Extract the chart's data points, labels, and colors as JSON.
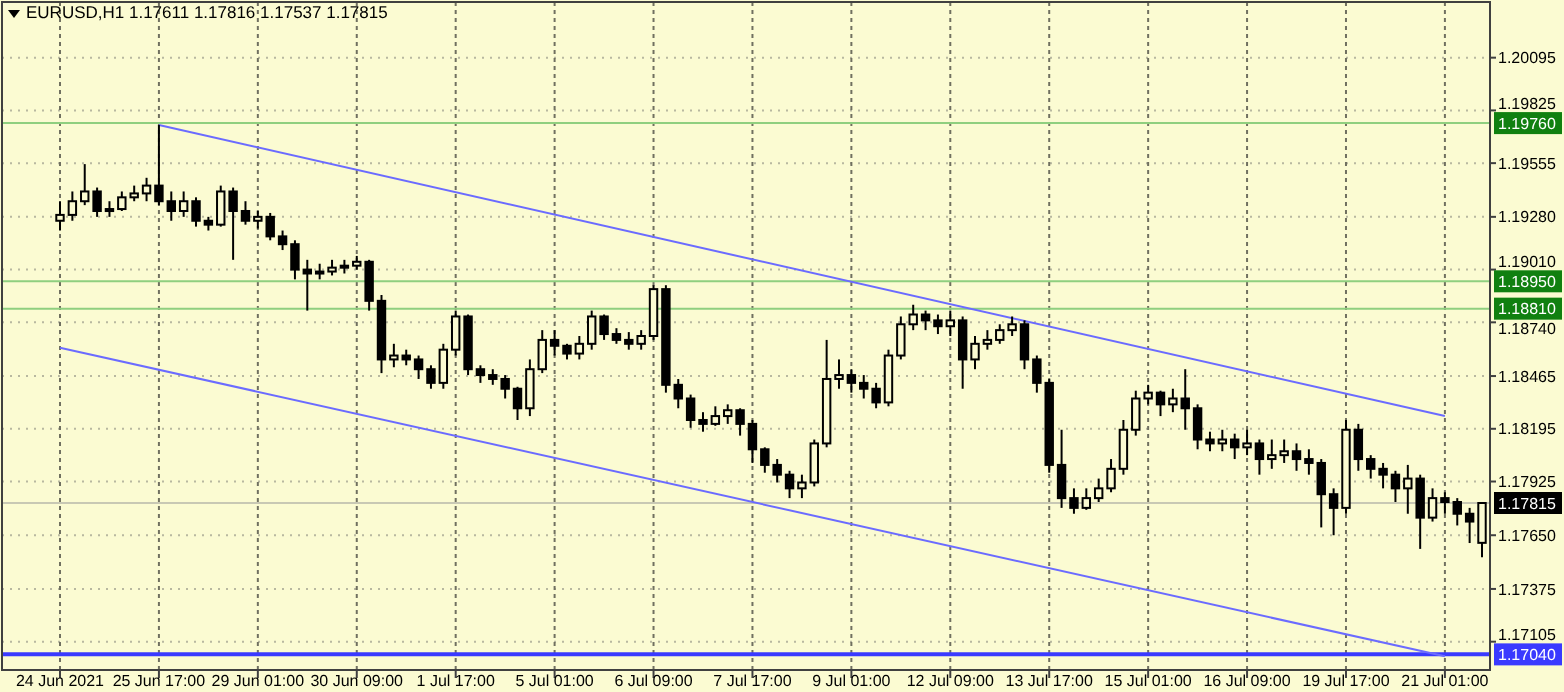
{
  "chart_data": {
    "type": "candlestick",
    "title": "EURUSD,H1  1.17611 1.17816 1.17537 1.17815",
    "categories": [
      "24 Jun 2021",
      null,
      null,
      null,
      null,
      null,
      null,
      null,
      "25 Jun 17:00",
      null,
      null,
      null,
      null,
      null,
      null,
      null,
      "29 Jun 01:00",
      null,
      null,
      null,
      null,
      null,
      null,
      null,
      "30 Jun 09:00",
      null,
      null,
      null,
      null,
      null,
      null,
      null,
      "1 Jul 17:00",
      null,
      null,
      null,
      null,
      null,
      null,
      null,
      "5 Jul 01:00",
      null,
      null,
      null,
      null,
      null,
      null,
      null,
      "6 Jul 09:00",
      null,
      null,
      null,
      null,
      null,
      null,
      null,
      "7 Jul 17:00",
      null,
      null,
      null,
      null,
      null,
      null,
      null,
      "9 Jul 01:00",
      null,
      null,
      null,
      null,
      null,
      null,
      null,
      "12 Jul 09:00",
      null,
      null,
      null,
      null,
      null,
      null,
      null,
      "13 Jul 17:00",
      null,
      null,
      null,
      null,
      null,
      null,
      null,
      "15 Jul 01:00",
      null,
      null,
      null,
      null,
      null,
      null,
      null,
      "16 Jul 09:00",
      null,
      null,
      null,
      null,
      null,
      null,
      null,
      "19 Jul 17:00",
      null,
      null,
      null,
      null,
      null,
      null,
      null,
      "21 Jul 01:00",
      null,
      null,
      null
    ],
    "color": "#000000",
    "ohlc": [
      [
        1.1926,
        1.1936,
        1.1921,
        1.1929
      ],
      [
        1.1929,
        1.1941,
        1.1926,
        1.1936
      ],
      [
        1.1936,
        1.1955,
        1.1934,
        1.1941
      ],
      [
        1.1941,
        1.1943,
        1.1928,
        1.1931
      ],
      [
        1.1931,
        1.1936,
        1.1928,
        1.1932
      ],
      [
        1.1932,
        1.1941,
        1.1931,
        1.1938
      ],
      [
        1.1938,
        1.1944,
        1.1936,
        1.194
      ],
      [
        1.194,
        1.1948,
        1.1936,
        1.1944
      ],
      [
        1.1944,
        1.1975,
        1.1934,
        1.1936
      ],
      [
        1.1936,
        1.1941,
        1.1926,
        1.1931
      ],
      [
        1.1931,
        1.1941,
        1.1928,
        1.1936
      ],
      [
        1.1936,
        1.1938,
        1.1923,
        1.1926
      ],
      [
        1.1926,
        1.1928,
        1.1921,
        1.1924
      ],
      [
        1.1924,
        1.1944,
        1.1923,
        1.1941
      ],
      [
        1.1941,
        1.1943,
        1.1906,
        1.1931
      ],
      [
        1.1931,
        1.1936,
        1.1924,
        1.1926
      ],
      [
        1.1926,
        1.1931,
        1.1922,
        1.1928
      ],
      [
        1.1928,
        1.193,
        1.1916,
        1.1918
      ],
      [
        1.1918,
        1.1921,
        1.1911,
        1.1914
      ],
      [
        1.1914,
        1.1916,
        1.1896,
        1.1901
      ],
      [
        1.1901,
        1.1906,
        1.188,
        1.1899
      ],
      [
        1.1899,
        1.1904,
        1.1896,
        1.19
      ],
      [
        1.19,
        1.1906,
        1.1898,
        1.1902
      ],
      [
        1.1902,
        1.1906,
        1.1899,
        1.1903
      ],
      [
        1.1903,
        1.1908,
        1.1901,
        1.1905
      ],
      [
        1.1905,
        1.1906,
        1.188,
        1.1885
      ],
      [
        1.1885,
        1.1888,
        1.1848,
        1.1855
      ],
      [
        1.1855,
        1.1863,
        1.1851,
        1.1857
      ],
      [
        1.1857,
        1.186,
        1.1852,
        1.1855
      ],
      [
        1.1855,
        1.1857,
        1.1845,
        1.185
      ],
      [
        1.185,
        1.1852,
        1.184,
        1.1843
      ],
      [
        1.1843,
        1.1863,
        1.184,
        1.186
      ],
      [
        1.186,
        1.188,
        1.1857,
        1.1877
      ],
      [
        1.1877,
        1.1878,
        1.1847,
        1.185
      ],
      [
        1.185,
        1.1852,
        1.1843,
        1.1847
      ],
      [
        1.1847,
        1.185,
        1.1842,
        1.1845
      ],
      [
        1.1845,
        1.1847,
        1.1835,
        1.184
      ],
      [
        1.184,
        1.1841,
        1.1824,
        1.183
      ],
      [
        1.183,
        1.1855,
        1.1826,
        1.185
      ],
      [
        1.185,
        1.187,
        1.1848,
        1.1865
      ],
      [
        1.1865,
        1.187,
        1.1857,
        1.1862
      ],
      [
        1.1862,
        1.1863,
        1.1855,
        1.1858
      ],
      [
        1.1858,
        1.1867,
        1.1855,
        1.1863
      ],
      [
        1.1863,
        1.188,
        1.186,
        1.1877
      ],
      [
        1.1877,
        1.1878,
        1.1865,
        1.1868
      ],
      [
        1.1868,
        1.1871,
        1.1863,
        1.1865
      ],
      [
        1.1865,
        1.1869,
        1.186,
        1.1863
      ],
      [
        1.1863,
        1.187,
        1.186,
        1.1867
      ],
      [
        1.1867,
        1.1893,
        1.1865,
        1.1891
      ],
      [
        1.1891,
        1.1893,
        1.1838,
        1.1842
      ],
      [
        1.1842,
        1.1845,
        1.183,
        1.1835
      ],
      [
        1.1835,
        1.1837,
        1.182,
        1.1824
      ],
      [
        1.1824,
        1.1828,
        1.1818,
        1.1822
      ],
      [
        1.1822,
        1.1831,
        1.1821,
        1.1826
      ],
      [
        1.1826,
        1.1832,
        1.1822,
        1.1829
      ],
      [
        1.1829,
        1.183,
        1.1816,
        1.1822
      ],
      [
        1.1822,
        1.1824,
        1.1802,
        1.1809
      ],
      [
        1.1809,
        1.181,
        1.1797,
        1.1801
      ],
      [
        1.1801,
        1.1804,
        1.1792,
        1.1796
      ],
      [
        1.1796,
        1.1798,
        1.1784,
        1.1789
      ],
      [
        1.1789,
        1.1796,
        1.1784,
        1.1792
      ],
      [
        1.1792,
        1.1814,
        1.179,
        1.1812
      ],
      [
        1.1812,
        1.1865,
        1.181,
        1.1845
      ],
      [
        1.1845,
        1.1855,
        1.184,
        1.1847
      ],
      [
        1.1847,
        1.185,
        1.1838,
        1.1843
      ],
      [
        1.1843,
        1.1847,
        1.1835,
        1.184
      ],
      [
        1.184,
        1.1843,
        1.183,
        1.1833
      ],
      [
        1.1833,
        1.186,
        1.1831,
        1.1857
      ],
      [
        1.1857,
        1.1877,
        1.1855,
        1.1873
      ],
      [
        1.1873,
        1.1883,
        1.187,
        1.1878
      ],
      [
        1.1878,
        1.188,
        1.187,
        1.1875
      ],
      [
        1.1875,
        1.1878,
        1.1868,
        1.1872
      ],
      [
        1.1872,
        1.188,
        1.1867,
        1.1875
      ],
      [
        1.1875,
        1.1877,
        1.184,
        1.1855
      ],
      [
        1.1855,
        1.1867,
        1.185,
        1.1863
      ],
      [
        1.1863,
        1.187,
        1.186,
        1.1865
      ],
      [
        1.1865,
        1.1873,
        1.1863,
        1.187
      ],
      [
        1.187,
        1.1877,
        1.1867,
        1.1873
      ],
      [
        1.1873,
        1.1875,
        1.185,
        1.1855
      ],
      [
        1.1855,
        1.1857,
        1.1838,
        1.1843
      ],
      [
        1.1843,
        1.1845,
        1.1797,
        1.1801
      ],
      [
        1.1801,
        1.1819,
        1.1779,
        1.1784
      ],
      [
        1.1784,
        1.1789,
        1.1776,
        1.1779
      ],
      [
        1.1779,
        1.1789,
        1.1778,
        1.1784
      ],
      [
        1.1784,
        1.1794,
        1.1782,
        1.1789
      ],
      [
        1.1789,
        1.1804,
        1.1787,
        1.1799
      ],
      [
        1.1799,
        1.1824,
        1.1796,
        1.1819
      ],
      [
        1.1819,
        1.1839,
        1.1816,
        1.1835
      ],
      [
        1.1835,
        1.1842,
        1.1832,
        1.1838
      ],
      [
        1.1838,
        1.1839,
        1.1826,
        1.1832
      ],
      [
        1.1832,
        1.184,
        1.1828,
        1.1835
      ],
      [
        1.1835,
        1.185,
        1.1819,
        1.183
      ],
      [
        1.183,
        1.1832,
        1.1809,
        1.1814
      ],
      [
        1.1814,
        1.1818,
        1.1808,
        1.1812
      ],
      [
        1.1812,
        1.1819,
        1.1808,
        1.1814
      ],
      [
        1.1814,
        1.1817,
        1.1804,
        1.181
      ],
      [
        1.181,
        1.1819,
        1.1806,
        1.1812
      ],
      [
        1.1812,
        1.1814,
        1.1796,
        1.1804
      ],
      [
        1.1804,
        1.1814,
        1.1799,
        1.1806
      ],
      [
        1.1806,
        1.1814,
        1.1802,
        1.1808
      ],
      [
        1.1808,
        1.1812,
        1.1798,
        1.1804
      ],
      [
        1.1804,
        1.1809,
        1.1796,
        1.1802
      ],
      [
        1.1802,
        1.1804,
        1.1769,
        1.1786
      ],
      [
        1.1786,
        1.1789,
        1.1765,
        1.1779
      ],
      [
        1.1779,
        1.1824,
        1.1776,
        1.1819
      ],
      [
        1.1819,
        1.1822,
        1.1798,
        1.1804
      ],
      [
        1.1804,
        1.1806,
        1.1794,
        1.1799
      ],
      [
        1.1799,
        1.1802,
        1.1789,
        1.1796
      ],
      [
        1.1796,
        1.1798,
        1.1782,
        1.1789
      ],
      [
        1.1789,
        1.1801,
        1.1776,
        1.1794
      ],
      [
        1.1794,
        1.1796,
        1.1758,
        1.1774
      ],
      [
        1.1774,
        1.1789,
        1.1772,
        1.1784
      ],
      [
        1.1784,
        1.1787,
        1.1776,
        1.1782
      ],
      [
        1.1782,
        1.1784,
        1.177,
        1.1776
      ],
      [
        1.1776,
        1.1779,
        1.1761,
        1.1772
      ],
      [
        1.17611,
        1.17816,
        1.17537,
        1.17815
      ]
    ],
    "series": [
      {
        "type": "line",
        "color": "#6b6bff",
        "x": [
          "25 Jun 17:00",
          "21 Jul 01:00"
        ],
        "values": [
          1.1975,
          1.1826
        ]
      },
      {
        "type": "line",
        "color": "#6b6bff",
        "x": [
          "24 Jun 2021",
          "21 Jul 01:00"
        ],
        "values": [
          1.1861,
          1.1703
        ]
      }
    ],
    "ylim": [
      1.1696,
      1.2038
    ],
    "yticks": [
      1.20095,
      1.19825,
      1.19555,
      {
        "value": 1.1928,
        "label": "1.19280"
      },
      {
        "value": 1.1901,
        "label": "1.19010"
      },
      {
        "value": 1.1874,
        "label": "1.18740"
      },
      1.18465,
      1.18195,
      1.17925,
      {
        "value": 1.1765,
        "label": "1.17650"
      },
      1.17375,
      1.17105
    ],
    "ref_lines": [
      {
        "axis": "y",
        "value": 1.1976,
        "label": "1.19760",
        "color": "#8fcf7f"
      },
      {
        "axis": "y",
        "value": 1.1895,
        "label": "1.18950",
        "color": "#8fcf7f"
      },
      {
        "axis": "y",
        "value": 1.1881,
        "label": "1.18810",
        "color": "#8fcf7f"
      },
      {
        "axis": "y",
        "value": 1.17815,
        "label": "1.17815",
        "color": "#c8c8b4"
      },
      {
        "axis": "y",
        "value": 1.1704,
        "label": "1.17040",
        "color": "#3a3aff"
      }
    ],
    "grid": true
  }
}
